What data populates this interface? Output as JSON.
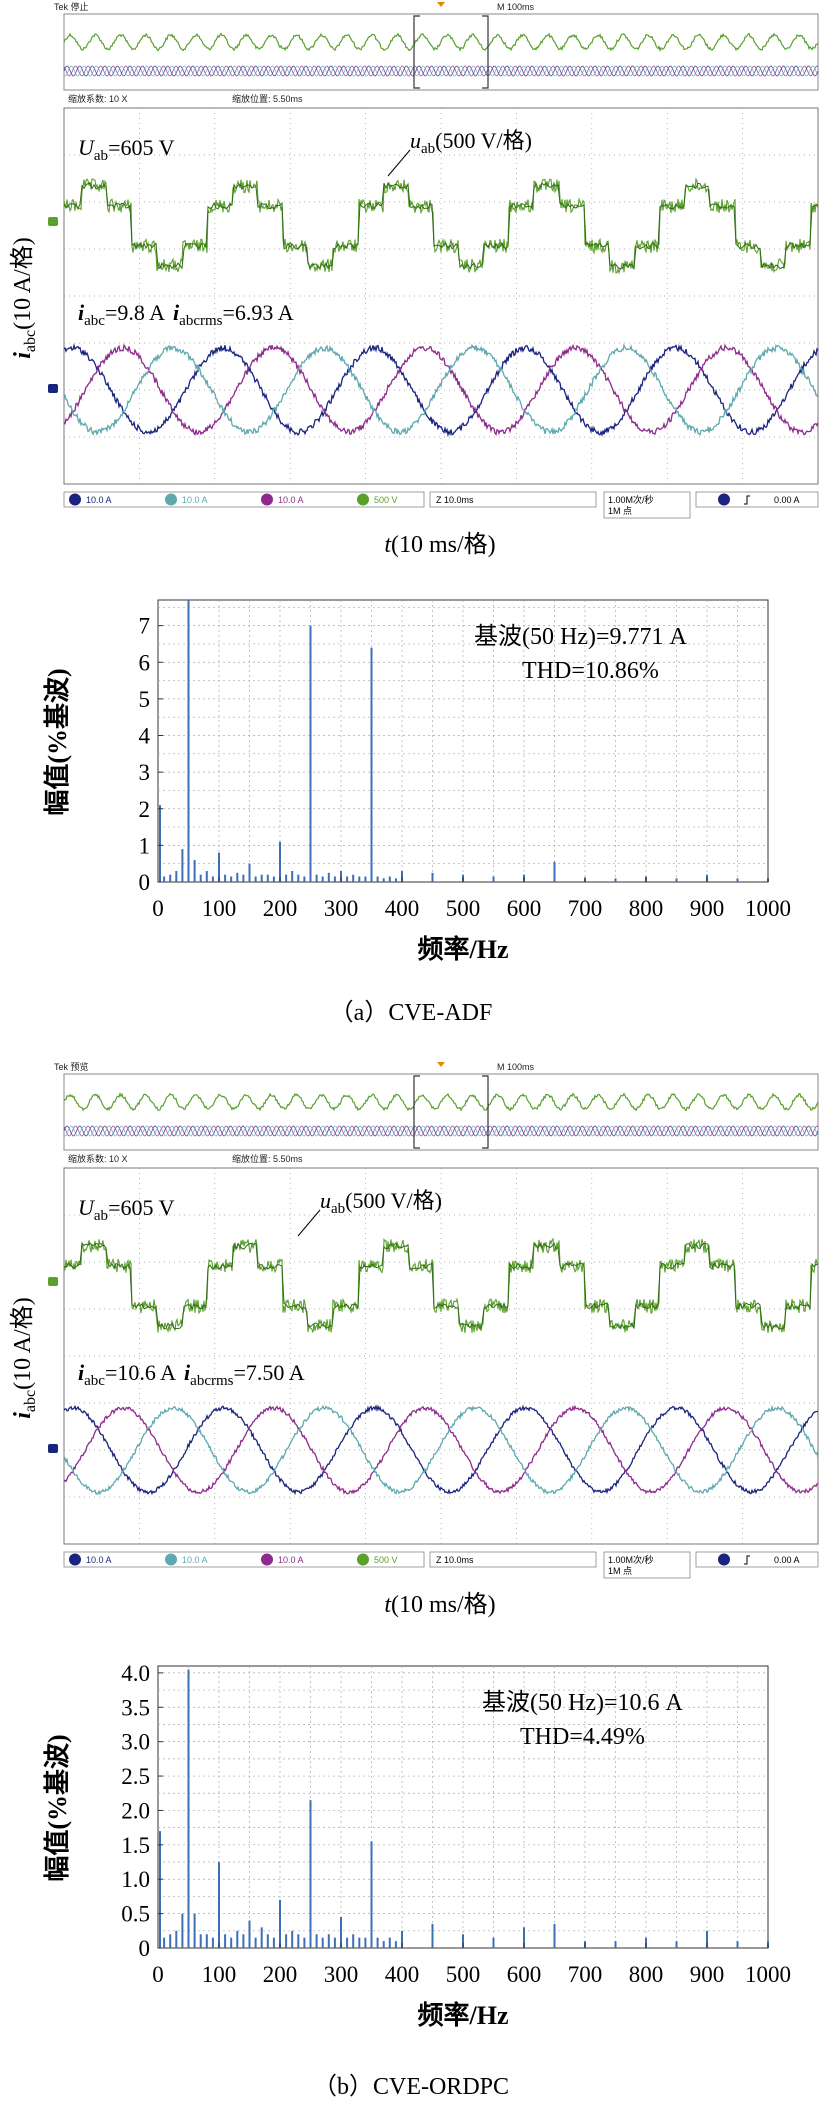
{
  "panels": [
    {
      "caption": "（a）CVE-ADF",
      "scope": {
        "status_left": "Tek 停止",
        "status_right": "M 100ms",
        "zoom_factor": "缩放系数: 10 X",
        "zoom_position": "缩放位置: 5.50ms",
        "u_label": "U",
        "u_sub": "ab",
        "u_value": "=605 V",
        "ab_label": "u",
        "ab_sub": "ab",
        "ab_value": "(500 V/格)",
        "i_label": "i",
        "i_sub": "abc",
        "i_value": "=9.8 A",
        "irms_label": "i",
        "irms_sub": "abcrms",
        "irms_value": "=6.93 A",
        "ylabel_main": "i",
        "ylabel_sub": "abc",
        "ylabel_rest": "(10 A/格)",
        "xlabel_main": "t",
        "xlabel_rest": "(10 ms/格)",
        "ch1": "10.0 A",
        "ch2": "10.0 A",
        "ch3": "10.0 A",
        "ch4": "500 V",
        "zoom_time": "Z 10.0ms",
        "sample_rate_1": "1.00M次/秒",
        "sample_rate_2": "1M 点",
        "trigger_level": "0.00 A",
        "colors": {
          "voltage": "#5aa02c",
          "ia": "#1a237e",
          "ib": "#5fa8b0",
          "ic": "#8e2a8e"
        }
      },
      "spectrum_chart": {
        "annotation_1": "基波(50 Hz)=9.771 A",
        "annotation_2": "THD=10.86%",
        "ylabel": "幅值(%基波)",
        "xlabel": "频率/Hz"
      }
    },
    {
      "caption": "（b）CVE-ORDPC",
      "scope": {
        "status_left": "Tek 预览",
        "status_right": "M 100ms",
        "zoom_factor": "缩放系数: 10 X",
        "zoom_position": "缩放位置: 5.50ms",
        "u_label": "U",
        "u_sub": "ab",
        "u_value": "=605 V",
        "ab_label": "u",
        "ab_sub": "ab",
        "ab_value": "(500 V/格)",
        "i_label": "i",
        "i_sub": "abc",
        "i_value": "=10.6 A",
        "irms_label": "i",
        "irms_sub": "abcrms",
        "irms_value": "=7.50 A",
        "ylabel_main": "i",
        "ylabel_sub": "abc",
        "ylabel_rest": "(10 A/格)",
        "xlabel_main": "t",
        "xlabel_rest": "(10 ms/格)",
        "ch1": "10.0 A",
        "ch2": "10.0 A",
        "ch3": "10.0 A",
        "ch4": "500 V",
        "zoom_time": "Z 10.0ms",
        "sample_rate_1": "1.00M次/秒",
        "sample_rate_2": "1M 点",
        "trigger_level": "0.00 A",
        "colors": {
          "voltage": "#5aa02c",
          "ia": "#1a237e",
          "ib": "#5fa8b0",
          "ic": "#8e2a8e"
        }
      },
      "spectrum_chart": {
        "annotation_1": "基波(50 Hz)=10.6 A",
        "annotation_2": "THD=4.49%",
        "ylabel": "幅值(%基波)",
        "xlabel": "频率/Hz"
      }
    }
  ],
  "chart_data": [
    {
      "type": "bar",
      "x": [
        0,
        10,
        20,
        30,
        40,
        50,
        60,
        70,
        80,
        90,
        100,
        110,
        120,
        130,
        140,
        150,
        160,
        170,
        180,
        190,
        200,
        210,
        220,
        230,
        240,
        250,
        260,
        270,
        280,
        290,
        300,
        310,
        320,
        330,
        340,
        350,
        360,
        370,
        380,
        390,
        400,
        450,
        500,
        550,
        600,
        650,
        700,
        750,
        800,
        850,
        900,
        950,
        1000
      ],
      "values": [
        2.1,
        0.15,
        0.2,
        0.3,
        0.9,
        7.7,
        0.6,
        0.2,
        0.3,
        0.15,
        0.8,
        0.2,
        0.15,
        0.25,
        0.2,
        0.5,
        0.15,
        0.2,
        0.2,
        0.15,
        1.1,
        0.2,
        0.3,
        0.2,
        0.15,
        7.0,
        0.2,
        0.15,
        0.25,
        0.15,
        0.3,
        0.15,
        0.2,
        0.15,
        0.15,
        6.4,
        0.15,
        0.1,
        0.15,
        0.1,
        0.3,
        0.25,
        0.2,
        0.15,
        0.2,
        0.55,
        0.1,
        0.1,
        0.15,
        0.1,
        0.2,
        0.1,
        0.1
      ],
      "xlim": [
        0,
        1000
      ],
      "ylim": [
        0,
        7.7
      ],
      "xticks": [
        0,
        100,
        200,
        300,
        400,
        500,
        600,
        700,
        800,
        900,
        1000
      ],
      "yticks": [
        0,
        1,
        2,
        3,
        4,
        5,
        6,
        7
      ],
      "ytick_labels": [
        "0",
        "1",
        "2",
        "3",
        "4",
        "5",
        "6",
        "7"
      ],
      "xlabel": "频率/Hz",
      "ylabel": "幅值(%基波)",
      "grid": true,
      "bar_color": "#3d6fb8"
    },
    {
      "type": "bar",
      "x": [
        0,
        10,
        20,
        30,
        40,
        50,
        60,
        70,
        80,
        90,
        100,
        110,
        120,
        130,
        140,
        150,
        160,
        170,
        180,
        190,
        200,
        210,
        220,
        230,
        240,
        250,
        260,
        270,
        280,
        290,
        300,
        310,
        320,
        330,
        340,
        350,
        360,
        370,
        380,
        390,
        400,
        450,
        500,
        550,
        600,
        650,
        700,
        750,
        800,
        850,
        900,
        950,
        1000
      ],
      "values": [
        1.7,
        0.15,
        0.2,
        0.25,
        0.5,
        4.05,
        0.5,
        0.2,
        0.2,
        0.15,
        1.25,
        0.2,
        0.15,
        0.25,
        0.2,
        0.4,
        0.15,
        0.3,
        0.2,
        0.15,
        0.7,
        0.2,
        0.25,
        0.2,
        0.15,
        2.15,
        0.2,
        0.15,
        0.2,
        0.15,
        0.45,
        0.15,
        0.2,
        0.15,
        0.15,
        1.55,
        0.15,
        0.1,
        0.15,
        0.1,
        0.25,
        0.35,
        0.2,
        0.15,
        0.3,
        0.35,
        0.1,
        0.1,
        0.15,
        0.1,
        0.25,
        0.1,
        0.1
      ],
      "xlim": [
        0,
        1000
      ],
      "ylim": [
        0,
        4.1
      ],
      "xticks": [
        0,
        100,
        200,
        300,
        400,
        500,
        600,
        700,
        800,
        900,
        1000
      ],
      "yticks": [
        0,
        0.5,
        1.0,
        1.5,
        2.0,
        2.5,
        3.0,
        3.5,
        4.0
      ],
      "ytick_labels": [
        "0",
        "0.5",
        "1.0",
        "1.5",
        "2.0",
        "2.5",
        "3.0",
        "3.5",
        "4.0"
      ],
      "xlabel": "频率/Hz",
      "ylabel": "幅值(%基波)",
      "grid": true,
      "bar_color": "#3d6fb8"
    }
  ]
}
